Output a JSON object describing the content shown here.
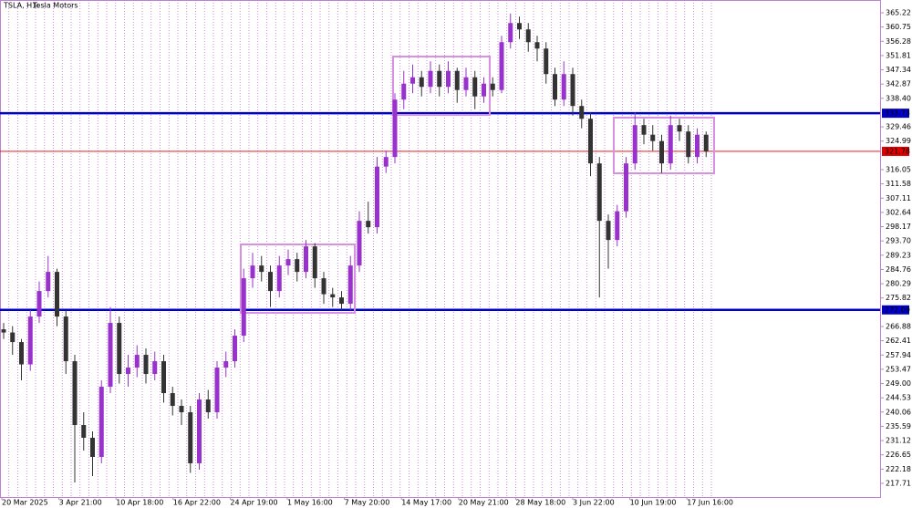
{
  "chart_data": {
    "type": "candlestick",
    "title": "TSLA, H1:",
    "subtitle": "Tesla Motors",
    "up_color": "#9932cc",
    "down_color": "#333333",
    "grid": true,
    "ylim": [
      213.42,
      369.22
    ],
    "yticks": [
      365.22,
      360.75,
      356.28,
      351.81,
      347.34,
      342.87,
      {
        "value": 338.4,
        "label": "338.40"
      },
      329.46,
      324.99,
      316.05,
      311.58,
      307.11,
      302.64,
      298.17,
      {
        "value": 293.7,
        "label": "293.70"
      },
      289.23,
      284.76,
      280.29,
      275.82,
      266.88,
      262.41,
      257.94,
      253.47,
      {
        "value": 249.0,
        "label": "249.00"
      },
      244.53,
      240.06,
      235.59,
      231.12,
      226.65,
      222.18,
      217.71
    ],
    "x_labels": [
      "20 Mar 2025",
      "3 Apr 21:00",
      "10 Apr 18:00",
      "16 Apr 22:00",
      "24 Apr 19:00",
      "1 May 16:00",
      "7 May 20:00",
      "14 May 17:00",
      "20 May 21:00",
      "28 May 18:00",
      "3 Jun 22:00",
      "10 Jun 19:00",
      "17 Jun 16:00"
    ],
    "levels": [
      {
        "value": 333.73,
        "label": "333.73",
        "color": "#0000cc"
      },
      {
        "value": 272.09,
        "label": "272.09",
        "color": "#0000cc"
      },
      {
        "value": 321.78,
        "label": "321.78",
        "color": "#e00000"
      }
    ],
    "open": [
      266,
      265,
      262,
      255,
      270,
      278,
      284,
      270,
      256,
      236,
      232,
      226,
      248,
      268,
      252,
      254,
      258,
      252,
      256,
      246,
      242,
      240,
      224,
      244,
      240,
      254,
      256,
      264,
      282,
      286,
      284,
      278,
      286,
      288,
      284,
      292,
      282,
      277,
      276,
      274,
      286,
      300,
      298,
      317,
      320,
      338,
      343,
      345,
      342,
      347,
      342,
      347,
      341,
      345,
      339,
      343,
      341,
      356,
      362,
      360,
      356,
      354,
      346,
      338,
      346,
      336,
      332,
      318,
      300,
      294,
      303,
      318,
      330,
      327,
      325,
      318,
      330,
      328,
      320,
      327
    ],
    "high": [
      268,
      267,
      263,
      272,
      281,
      289,
      285,
      272,
      258,
      240,
      234,
      250,
      273,
      270,
      258,
      261,
      260,
      259,
      258,
      248,
      244,
      242,
      246,
      247,
      256,
      259,
      266,
      285,
      290,
      289,
      286,
      289,
      291,
      290,
      294,
      293,
      284,
      279,
      278,
      289,
      303,
      306,
      320,
      322,
      340,
      347,
      349,
      347,
      350,
      349,
      350,
      348,
      348,
      347,
      345,
      345,
      358,
      365,
      364,
      362,
      358,
      356,
      348,
      350,
      348,
      338,
      334,
      320,
      302,
      305,
      320,
      334,
      332,
      330,
      327,
      333,
      332,
      330,
      329,
      328
    ],
    "low": [
      263,
      258,
      250,
      253,
      268,
      276,
      267,
      252,
      218,
      228,
      220,
      224,
      246,
      249,
      248,
      251,
      249,
      250,
      243,
      239,
      236,
      221,
      222,
      238,
      238,
      251,
      254,
      262,
      279,
      281,
      273,
      276,
      283,
      281,
      282,
      279,
      274,
      273,
      272,
      272,
      284,
      296,
      296,
      315,
      318,
      335,
      340,
      339,
      340,
      339,
      340,
      337,
      339,
      335,
      337,
      339,
      340,
      354,
      357,
      353,
      350,
      343,
      336,
      336,
      333,
      329,
      314,
      276,
      285,
      292,
      301,
      316,
      324,
      322,
      315,
      316,
      325,
      318,
      318,
      320
    ],
    "close": [
      265,
      262,
      255,
      270,
      278,
      284,
      270,
      256,
      236,
      232,
      226,
      248,
      268,
      252,
      254,
      258,
      252,
      256,
      246,
      242,
      240,
      224,
      244,
      240,
      254,
      256,
      264,
      282,
      286,
      284,
      278,
      286,
      288,
      284,
      292,
      282,
      277,
      276,
      274,
      286,
      300,
      298,
      317,
      320,
      338,
      343,
      345,
      342,
      347,
      342,
      347,
      341,
      345,
      339,
      343,
      341,
      356,
      362,
      360,
      356,
      354,
      346,
      338,
      346,
      336,
      332,
      318,
      300,
      294,
      303,
      318,
      330,
      327,
      325,
      318,
      330,
      328,
      320,
      327,
      321.78
    ]
  }
}
